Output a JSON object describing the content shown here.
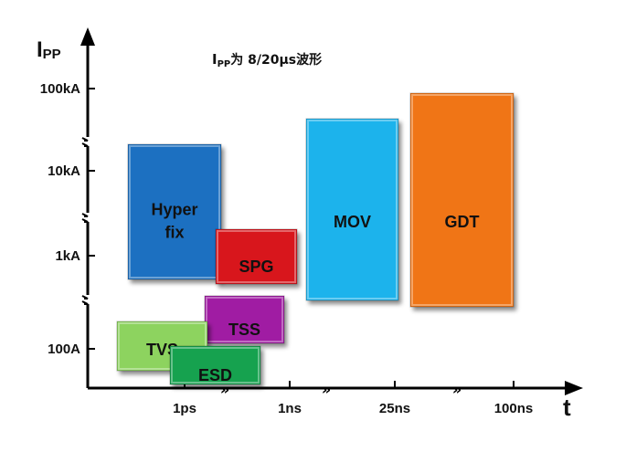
{
  "chart_data": {
    "type": "range-block",
    "note": {
      "prefix": "I",
      "sub": "PP",
      "text": "为 8/20µs波形"
    },
    "ylabel": {
      "main": "I",
      "sub": "PP"
    },
    "xlabel": "t",
    "y_ticks": [
      "100kA",
      "10kA",
      "1kA",
      "100A"
    ],
    "x_ticks": [
      "1ps",
      "1ns",
      "25ns",
      "100ns"
    ],
    "axis_break_mark": "»",
    "series": [
      {
        "name": "Hyper fix",
        "lines": [
          "Hyper",
          "fix"
        ],
        "color": "#1b6fc1",
        "t_range": [
          "< 1ps",
          "≈ 1ns"
        ],
        "ipp_range": [
          "≈ 600A",
          "≈ 20kA"
        ]
      },
      {
        "name": "SPG",
        "lines": [
          "SPG"
        ],
        "color": "#d8141e",
        "t_range": [
          "≈ 1ps",
          "≈ 1ns"
        ],
        "ipp_range": [
          "≈ 300A",
          "≈ 2kA"
        ]
      },
      {
        "name": "TSS",
        "lines": [
          "TSS"
        ],
        "color": "#a01ea3",
        "t_range": [
          "≈ 1ps",
          "≈ 1ns"
        ],
        "ipp_range": [
          "≈ 150A",
          "≈ 450A"
        ]
      },
      {
        "name": "TVS",
        "lines": [
          "TVS"
        ],
        "color": "#8dd35f",
        "t_range": [
          "< 1ps",
          "≈ 1ps"
        ],
        "ipp_range": [
          "≈ 60A",
          "≈ 250A"
        ]
      },
      {
        "name": "ESD",
        "lines": [
          "ESD"
        ],
        "color": "#14a250",
        "t_range": [
          "< 1ps",
          "< 1ns"
        ],
        "ipp_range": [
          "< 100A",
          "≈ 150A"
        ]
      },
      {
        "name": "MOV",
        "lines": [
          "MOV"
        ],
        "color": "#1fb3ec",
        "t_range": [
          "≈ 1ns",
          "< 25ns"
        ],
        "ipp_range": [
          "≈ 400A",
          "≈ 40kA"
        ]
      },
      {
        "name": "GDT",
        "lines": [
          "GDT"
        ],
        "color": "#f07514",
        "t_range": [
          "≈ 25ns",
          "≈ 100ns"
        ],
        "ipp_range": [
          "≈ 350A",
          "≈ 100kA"
        ]
      }
    ],
    "colors": {
      "axis": "#000000",
      "text": "#111111"
    }
  }
}
